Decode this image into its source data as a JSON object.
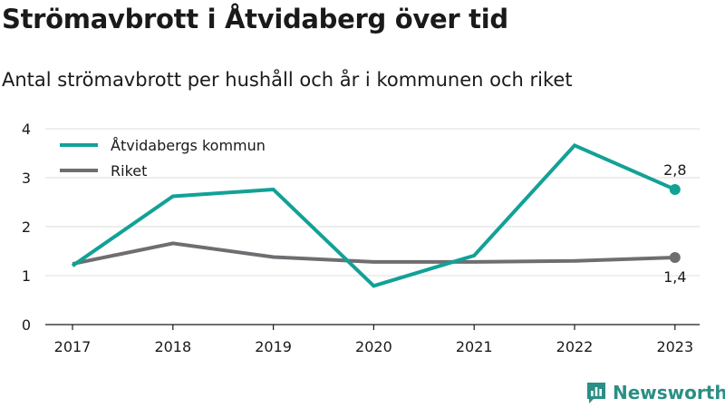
{
  "title": "Strömavbrott i Åtvidaberg över tid",
  "subtitle": "Antal strömavbrott per hushåll och år i kommunen och riket",
  "brand": {
    "name": "Newsworthy",
    "color": "#2a8f84",
    "icon": "newsworthy-logo-icon"
  },
  "chart_data": {
    "type": "line",
    "categories": [
      "2017",
      "2018",
      "2019",
      "2020",
      "2021",
      "2022",
      "2023"
    ],
    "series": [
      {
        "name": "Åtvidabergs kommun",
        "color": "#12a197",
        "values": [
          1.2,
          2.62,
          2.76,
          0.79,
          1.41,
          3.66,
          2.76
        ],
        "end_label": "2,8"
      },
      {
        "name": "Riket",
        "color": "#6e6e72",
        "values": [
          1.24,
          1.66,
          1.38,
          1.28,
          1.28,
          1.3,
          1.37
        ],
        "end_label": "1,4"
      }
    ],
    "ylim": [
      0,
      4
    ],
    "yticks": [
      0,
      1,
      2,
      3,
      4
    ],
    "grid": true,
    "legend": "top-left"
  }
}
